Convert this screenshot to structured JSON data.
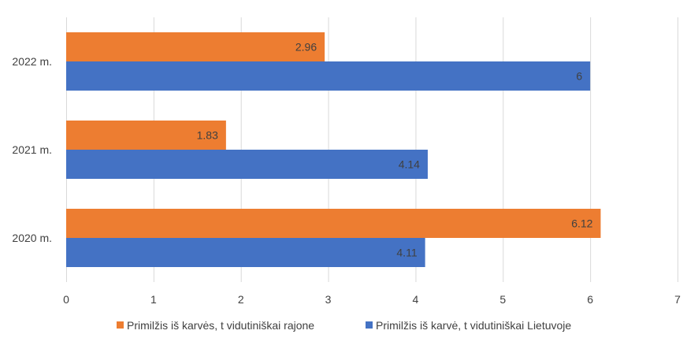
{
  "chart_data": {
    "type": "bar",
    "orientation": "horizontal",
    "categories": [
      "2020 m.",
      "2021 m.",
      "2022 m."
    ],
    "series": [
      {
        "name": "Primilžis iš karvės, t vidutiniškai rajone",
        "values": [
          6.12,
          1.83,
          2.96
        ],
        "color": "#ED7D31",
        "labels": [
          "6.12",
          "1.83",
          "2.96"
        ]
      },
      {
        "name": "Primilžis iš karvė, t vidutiniškai Lietuvoje",
        "values": [
          4.11,
          4.14,
          6
        ],
        "color": "#4472C4",
        "labels": [
          "4.11",
          "4.14",
          "6"
        ]
      }
    ],
    "xlim": [
      0,
      7
    ],
    "xticks": [
      "0",
      "1",
      "2",
      "3",
      "4",
      "5",
      "6",
      "7"
    ],
    "grid": "vertical",
    "legend_position": "bottom",
    "gridline_color": "#D9D9D9"
  }
}
